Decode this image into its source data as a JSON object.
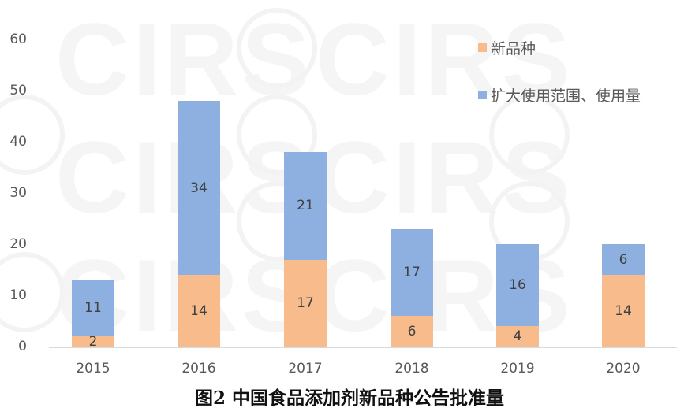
{
  "chart_data": {
    "type": "bar",
    "stacked": true,
    "title": "图2 中国食品添加剂新品种公告批准量",
    "xlabel": "",
    "ylabel": "",
    "categories": [
      "2015",
      "2016",
      "2017",
      "2018",
      "2019",
      "2020"
    ],
    "series": [
      {
        "name": "新品种",
        "color": "#f8bc8c",
        "values": [
          2,
          14,
          17,
          6,
          4,
          14
        ]
      },
      {
        "name": "扩大使用范围、使用量",
        "color": "#8db0e0",
        "values": [
          11,
          34,
          21,
          17,
          16,
          6
        ]
      }
    ],
    "ylim": [
      0,
      60
    ],
    "yticks": [
      "0",
      "10",
      "20",
      "30",
      "40",
      "50",
      "60"
    ],
    "grid": false,
    "legend_position": "top-right",
    "data_labels": true
  },
  "legend": {
    "items": [
      {
        "label": "新品种",
        "color": "#f8bc8c"
      },
      {
        "label": "扩大使用范围、使用量",
        "color": "#8db0e0"
      }
    ]
  },
  "caption": "图2 中国食品添加剂新品种公告批准量",
  "watermark": "CIRS"
}
